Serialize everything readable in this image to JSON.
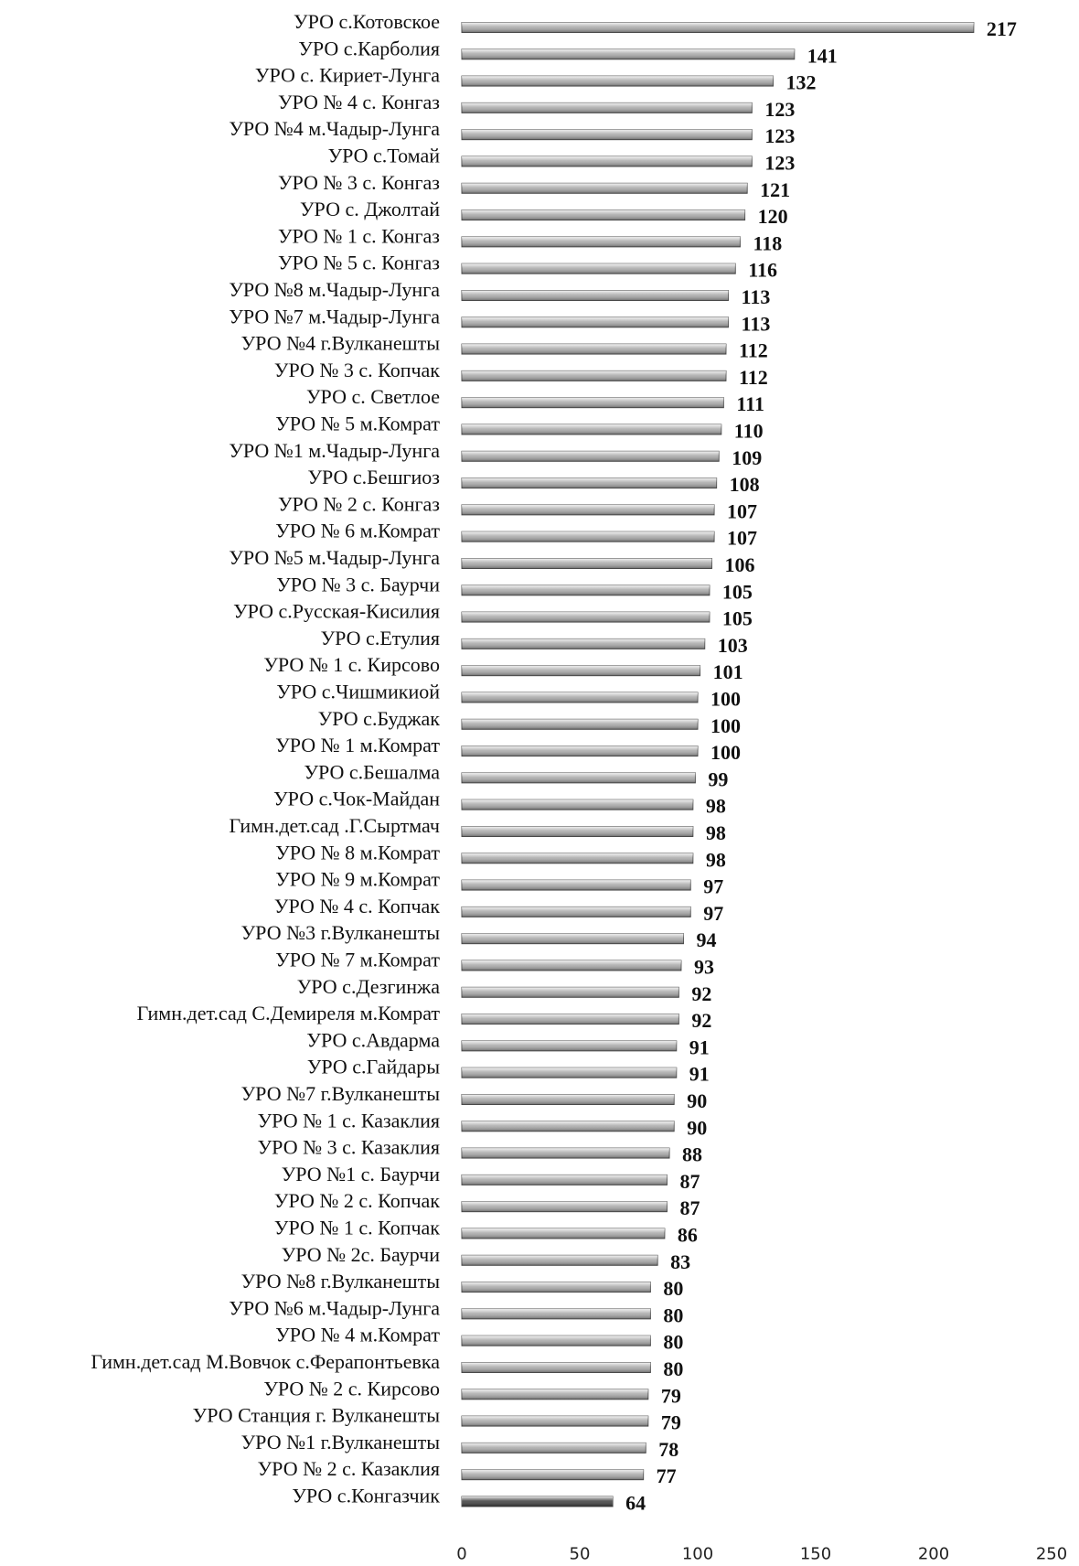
{
  "chart_data": {
    "type": "hbar",
    "categories": [
      "УРО  с.Котовское",
      "УРО  с.Карболия",
      "УРО с. Кириет-Лунга",
      "УРО № 4 с. Конгаз",
      "УРО №4 м.Чадыр-Лунга",
      "УРО  с.Томай",
      "УРО № 3 с. Конгаз",
      "УРО с. Джолтай",
      "УРО № 1 с. Конгаз",
      "УРО № 5 с. Конгаз",
      "УРО №8 м.Чадыр-Лунга",
      "УРО  №7 м.Чадыр-Лунга",
      "УРО №4 г.Вулканешты",
      "УРО № 3 с. Копчак",
      "УРО с. Светлое",
      "УРО № 5 м.Комрат",
      "УРО №1 м.Чадыр-Лунга",
      "УРО с.Бешгиоз",
      "УРО № 2 с. Конгаз",
      "УРО № 6 м.Комрат",
      "УРО №5 м.Чадыр-Лунга",
      "УРО № 3 с. Баурчи",
      "УРО  с.Русская-Кисилия",
      "УРО с.Етулия",
      "УРО № 1 с. Кирсово",
      "УРО  с.Чишмикиой",
      "УРО с.Буджак",
      "УРО № 1 м.Комрат",
      "УРО  с.Бешалма",
      "УРО с.Чок-Майдан",
      "Гимн.дет.сад .Г.Сыртмач",
      "УРО № 8 м.Комрат",
      "УРО № 9 м.Комрат",
      "УРО № 4 с. Копчак",
      "УРО №3 г.Вулканешты",
      "УРО № 7 м.Комрат",
      "УРО  с.Дезгинжа",
      "Гимн.дет.сад С.Демиреля м.Комрат",
      "УРО  с.Авдарма",
      "УРО с.Гайдары",
      "УРО №7 г.Вулканешты",
      "УРО № 1 с. Казаклия",
      "УРО № 3 с. Казаклия",
      "УРО №1 с. Баурчи",
      "УРО № 2 с. Копчак",
      "УРО № 1 с. Копчак",
      "УРО № 2с. Баурчи",
      "УРО №8 г.Вулканешты",
      "УРО  №6 м.Чадыр-Лунга",
      "УРО № 4 м.Комрат",
      "Гимн.дет.сад М.Вовчок с.Ферапонтьевка",
      "УРО № 2 с. Кирсово",
      "УРО Станция г. Вулканешты",
      "УРО №1 г.Вулканешты",
      "УРО № 2 с. Казаклия",
      "УРО  с.Конгазчик"
    ],
    "values": [
      217,
      141,
      132,
      123,
      123,
      123,
      121,
      120,
      118,
      116,
      113,
      113,
      112,
      112,
      111,
      110,
      109,
      108,
      107,
      107,
      106,
      105,
      105,
      103,
      101,
      100,
      100,
      100,
      99,
      98,
      98,
      98,
      97,
      97,
      94,
      93,
      92,
      92,
      91,
      91,
      90,
      90,
      88,
      87,
      87,
      86,
      83,
      80,
      80,
      80,
      80,
      79,
      79,
      78,
      77,
      64
    ],
    "color": "#a8a8a8",
    "last_color": "#3c3c3c",
    "xlim": [
      0,
      250
    ],
    "xticks": [
      0,
      50,
      100,
      150,
      200,
      250
    ]
  }
}
